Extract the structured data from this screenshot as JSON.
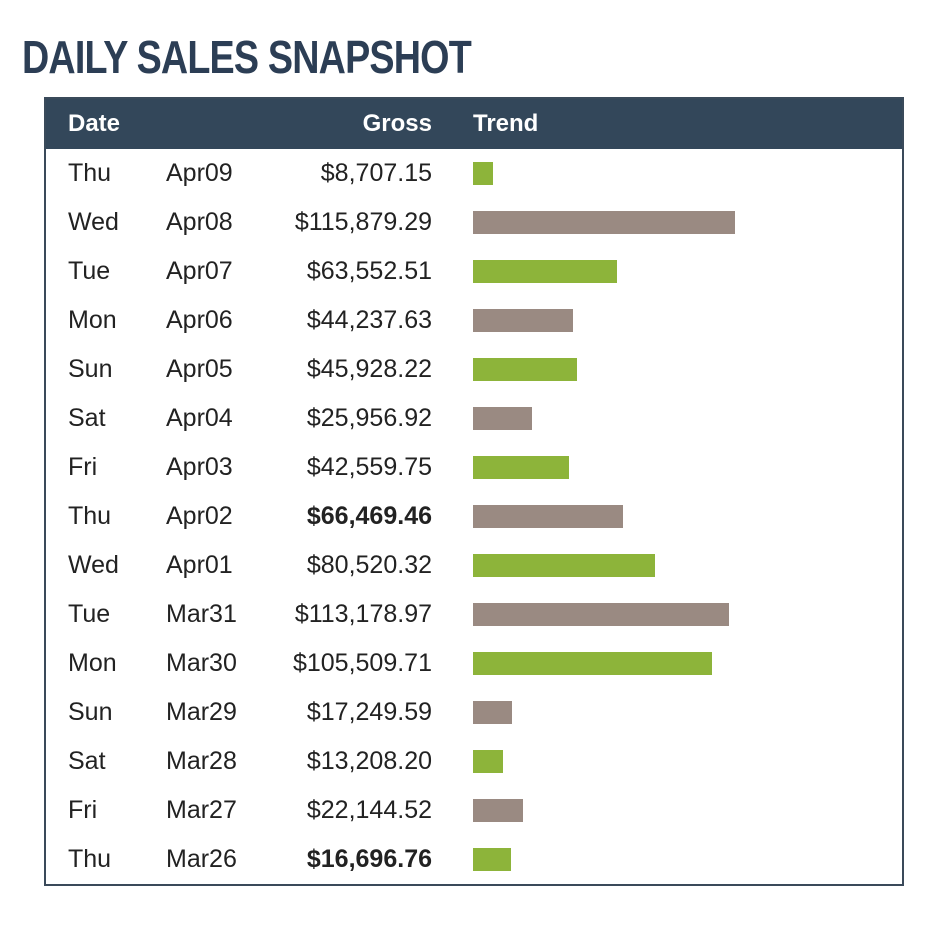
{
  "title": "DAILY SALES SNAPSHOT",
  "headers": {
    "date": "Date",
    "gross": "Gross",
    "trend": "Trend"
  },
  "colors": {
    "header_bg": "#33475a",
    "title": "#2c3e55",
    "bar_green": "#8db43a",
    "bar_taupe": "#9a8a82"
  },
  "rows": [
    {
      "day": "Thu",
      "date": "Apr09",
      "gross": "$8,707.15",
      "bold": false,
      "bar": "green"
    },
    {
      "day": "Wed",
      "date": "Apr08",
      "gross": "$115,879.29",
      "bold": false,
      "bar": "taupe"
    },
    {
      "day": "Tue",
      "date": "Apr07",
      "gross": "$63,552.51",
      "bold": false,
      "bar": "green"
    },
    {
      "day": "Mon",
      "date": "Apr06",
      "gross": "$44,237.63",
      "bold": false,
      "bar": "taupe"
    },
    {
      "day": "Sun",
      "date": "Apr05",
      "gross": "$45,928.22",
      "bold": false,
      "bar": "green"
    },
    {
      "day": "Sat",
      "date": "Apr04",
      "gross": "$25,956.92",
      "bold": false,
      "bar": "taupe"
    },
    {
      "day": "Fri",
      "date": "Apr03",
      "gross": "$42,559.75",
      "bold": false,
      "bar": "green"
    },
    {
      "day": "Thu",
      "date": "Apr02",
      "gross": "$66,469.46",
      "bold": true,
      "bar": "taupe"
    },
    {
      "day": "Wed",
      "date": "Apr01",
      "gross": "$80,520.32",
      "bold": false,
      "bar": "green"
    },
    {
      "day": "Tue",
      "date": "Mar31",
      "gross": "$113,178.97",
      "bold": false,
      "bar": "taupe"
    },
    {
      "day": "Mon",
      "date": "Mar30",
      "gross": "$105,509.71",
      "bold": false,
      "bar": "green"
    },
    {
      "day": "Sun",
      "date": "Mar29",
      "gross": "$17,249.59",
      "bold": false,
      "bar": "taupe"
    },
    {
      "day": "Sat",
      "date": "Mar28",
      "gross": "$13,208.20",
      "bold": false,
      "bar": "green"
    },
    {
      "day": "Fri",
      "date": "Mar27",
      "gross": "$22,144.52",
      "bold": false,
      "bar": "taupe"
    },
    {
      "day": "Thu",
      "date": "Mar26",
      "gross": "$16,696.76",
      "bold": true,
      "bar": "green"
    }
  ],
  "chart_data": {
    "type": "bar",
    "orientation": "horizontal",
    "categories": [
      "Thu Apr09",
      "Wed Apr08",
      "Tue Apr07",
      "Mon Apr06",
      "Sun Apr05",
      "Sat Apr04",
      "Fri Apr03",
      "Thu Apr02",
      "Wed Apr01",
      "Tue Mar31",
      "Mon Mar30",
      "Sun Mar29",
      "Sat Mar28",
      "Fri Mar27",
      "Thu Mar26"
    ],
    "values": [
      8707.15,
      115879.29,
      63552.51,
      44237.63,
      45928.22,
      25956.92,
      42559.75,
      66469.46,
      80520.32,
      113178.97,
      105509.71,
      17249.59,
      13208.2,
      22144.52,
      16696.76
    ],
    "title": "DAILY SALES SNAPSHOT",
    "xlabel": "",
    "ylabel": "",
    "grid": false
  }
}
